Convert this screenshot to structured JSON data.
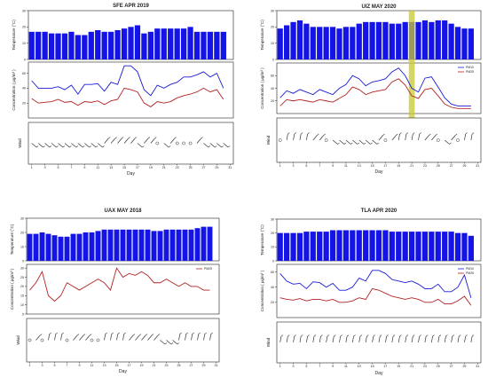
{
  "figure": {
    "panels": [
      {
        "title": "SFE APR 2019",
        "temp": [
          17,
          17,
          17,
          16,
          16,
          16,
          17,
          15,
          15,
          17,
          18,
          17,
          17,
          18,
          19,
          20,
          21,
          16,
          17,
          19,
          19,
          19,
          19,
          19,
          20,
          17,
          17,
          17,
          17,
          17
        ],
        "pm10": [
          50,
          40,
          40,
          40,
          42,
          38,
          44,
          32,
          45,
          45,
          46,
          36,
          48,
          45,
          70,
          70,
          62,
          38,
          30,
          44,
          40,
          45,
          48,
          55,
          55,
          58,
          62,
          55,
          60,
          40
        ],
        "pm25": [
          26,
          20,
          21,
          22,
          25,
          21,
          22,
          17,
          22,
          21,
          23,
          18,
          23,
          25,
          40,
          38,
          35,
          20,
          15,
          22,
          20,
          22,
          27,
          30,
          32,
          35,
          40,
          35,
          38,
          25
        ],
        "wind": [
          2,
          2,
          2,
          2,
          2,
          2,
          2,
          2,
          2,
          2,
          2,
          1,
          1,
          1,
          1,
          1,
          2,
          1,
          1,
          0,
          2,
          1,
          0,
          0,
          0,
          1,
          2,
          2,
          2,
          2
        ],
        "legend": [],
        "highlight": null
      },
      {
        "title": "UIZ MAY 2020",
        "temp": [
          19,
          21,
          23,
          24,
          22,
          20,
          20,
          20,
          20,
          19,
          20,
          20,
          22,
          23,
          23,
          23,
          23,
          22,
          22,
          23,
          23,
          23,
          24,
          23,
          24,
          24,
          22,
          20,
          19,
          19
        ],
        "pm10": [
          25,
          36,
          32,
          38,
          34,
          30,
          38,
          34,
          30,
          40,
          46,
          60,
          55,
          44,
          50,
          52,
          55,
          66,
          72,
          60,
          40,
          34,
          56,
          58,
          42,
          25,
          15,
          12,
          12,
          12
        ],
        "pm25": [
          12,
          22,
          20,
          22,
          20,
          18,
          22,
          20,
          18,
          24,
          30,
          42,
          38,
          30,
          34,
          36,
          38,
          50,
          55,
          45,
          28,
          24,
          38,
          40,
          28,
          15,
          10,
          8,
          8,
          8
        ],
        "wind": [
          0,
          3,
          3,
          3,
          3,
          1,
          1,
          0,
          2,
          2,
          2,
          2,
          2,
          2,
          2,
          1,
          0,
          1,
          3,
          3,
          3,
          3,
          1,
          1,
          0,
          2,
          1,
          0,
          3,
          3
        ],
        "legend": [
          "PM10",
          "PM25"
        ],
        "highlight": 20
      },
      {
        "title": "UAX MAY 2018",
        "temp": [
          19,
          19,
          20,
          19,
          18,
          17,
          17,
          19,
          19,
          20,
          20,
          21,
          22,
          22,
          22,
          22,
          22,
          22,
          22,
          22,
          21,
          21,
          22,
          22,
          22,
          22,
          22,
          23,
          24,
          24
        ],
        "pm10": [],
        "pm25": [
          18,
          22,
          28,
          15,
          12,
          15,
          22,
          20,
          18,
          20,
          22,
          24,
          22,
          18,
          30,
          25,
          27,
          26,
          28,
          26,
          22,
          22,
          24,
          22,
          20,
          22,
          20,
          20,
          18,
          18
        ],
        "wind": [
          0,
          1,
          0,
          3,
          3,
          3,
          0,
          1,
          1,
          1,
          0,
          0,
          3,
          3,
          3,
          3,
          1,
          1,
          1,
          1,
          1,
          2,
          2,
          2,
          3,
          3,
          3,
          3,
          3,
          3
        ],
        "legend": [
          "PM25"
        ],
        "highlight": null
      },
      {
        "title": "TLA APR 2020",
        "temp": [
          20,
          20,
          20,
          20,
          21,
          21,
          21,
          21,
          22,
          22,
          22,
          22,
          22,
          22,
          22,
          22,
          22,
          21,
          21,
          21,
          21,
          21,
          21,
          21,
          21,
          21,
          21,
          20,
          20,
          18
        ],
        "pm10": [
          58,
          48,
          44,
          45,
          38,
          47,
          46,
          40,
          45,
          36,
          36,
          40,
          52,
          48,
          62,
          62,
          58,
          50,
          48,
          46,
          48,
          44,
          38,
          38,
          44,
          34,
          34,
          40,
          56,
          26
        ],
        "pm25": [
          26,
          24,
          23,
          25,
          22,
          24,
          24,
          22,
          24,
          20,
          20,
          22,
          26,
          24,
          38,
          36,
          32,
          28,
          26,
          24,
          26,
          24,
          20,
          20,
          24,
          18,
          18,
          22,
          28,
          16
        ],
        "wind": [
          3,
          3,
          3,
          3,
          3,
          3,
          3,
          3,
          3,
          3,
          3,
          3,
          3,
          3,
          3,
          3,
          3,
          3,
          3,
          3,
          3,
          3,
          3,
          3,
          3,
          3,
          3,
          3,
          3,
          3
        ],
        "legend": [
          "PM10",
          "PM25"
        ],
        "highlight": null
      }
    ],
    "ylabel_temp": "Temperature (°C)",
    "ylabel_conc": "Concentration ( μg/m³ )",
    "ylabel_wind": "Wind",
    "xlabel": "Day",
    "x_ticks": [
      "1",
      "3",
      "5",
      "7",
      "9",
      "11",
      "13",
      "15",
      "17",
      "19",
      "21",
      "23",
      "25",
      "27",
      "29",
      "31"
    ],
    "temp_ticks": [
      "0",
      "10",
      "20",
      "30"
    ],
    "conc_ticks": [
      "20",
      "40",
      "60"
    ],
    "conc_ticks_uax": [
      "5",
      "10",
      "15",
      "20",
      "25",
      "30"
    ],
    "colors": {
      "bar": "#1414e6",
      "pm10": "#1a1ad6",
      "pm25": "#b22222",
      "highlight": "#c8c830",
      "wind": "#333333"
    }
  },
  "chart_data": [
    {
      "type": "bar",
      "title": "SFE APR 2019",
      "xlabel": "Day",
      "ylabel": "Temperature (°C)",
      "ylim": [
        0,
        30
      ],
      "categories": [
        "1",
        "2",
        "3",
        "4",
        "5",
        "6",
        "7",
        "8",
        "9",
        "10",
        "11",
        "12",
        "13",
        "14",
        "15",
        "16",
        "17",
        "18",
        "19",
        "20",
        "21",
        "22",
        "23",
        "24",
        "25",
        "26",
        "27",
        "28",
        "29",
        "30"
      ],
      "values": [
        17,
        17,
        17,
        16,
        16,
        16,
        17,
        15,
        15,
        17,
        18,
        17,
        17,
        18,
        19,
        20,
        21,
        16,
        17,
        19,
        19,
        19,
        19,
        19,
        20,
        17,
        17,
        17,
        17,
        17
      ]
    },
    {
      "type": "line",
      "title": "SFE APR 2019",
      "xlabel": "Day",
      "ylabel": "Concentration ( μg/m³ )",
      "ylim": [
        0,
        75
      ],
      "x": [
        1,
        2,
        3,
        4,
        5,
        6,
        7,
        8,
        9,
        10,
        11,
        12,
        13,
        14,
        15,
        16,
        17,
        18,
        19,
        20,
        21,
        22,
        23,
        24,
        25,
        26,
        27,
        28,
        29,
        30
      ],
      "series": [
        {
          "values": [
            50,
            40,
            40,
            40,
            42,
            38,
            44,
            32,
            45,
            45,
            46,
            36,
            48,
            45,
            70,
            70,
            62,
            38,
            30,
            44,
            40,
            45,
            48,
            55,
            55,
            58,
            62,
            55,
            60,
            40
          ]
        },
        {
          "values": [
            26,
            20,
            21,
            22,
            25,
            21,
            22,
            17,
            22,
            21,
            23,
            18,
            23,
            25,
            40,
            38,
            35,
            20,
            15,
            22,
            20,
            22,
            27,
            30,
            32,
            35,
            40,
            35,
            38,
            25
          ]
        }
      ]
    },
    {
      "type": "bar",
      "title": "UIZ MAY 2020",
      "xlabel": "Day",
      "ylabel": "Temperature (°C)",
      "ylim": [
        0,
        30
      ],
      "categories": [
        "1",
        "2",
        "3",
        "4",
        "5",
        "6",
        "7",
        "8",
        "9",
        "10",
        "11",
        "12",
        "13",
        "14",
        "15",
        "16",
        "17",
        "18",
        "19",
        "20",
        "21",
        "22",
        "23",
        "24",
        "25",
        "26",
        "27",
        "28",
        "29",
        "30"
      ],
      "values": [
        19,
        21,
        23,
        24,
        22,
        20,
        20,
        20,
        20,
        19,
        20,
        20,
        22,
        23,
        23,
        23,
        23,
        22,
        22,
        23,
        23,
        23,
        24,
        23,
        24,
        24,
        22,
        20,
        19,
        19
      ]
    },
    {
      "type": "line",
      "title": "UIZ MAY 2020",
      "xlabel": "Day",
      "ylabel": "Concentration ( μg/m³ )",
      "ylim": [
        0,
        80
      ],
      "x": [
        1,
        2,
        3,
        4,
        5,
        6,
        7,
        8,
        9,
        10,
        11,
        12,
        13,
        14,
        15,
        16,
        17,
        18,
        19,
        20,
        21,
        22,
        23,
        24,
        25,
        26,
        27,
        28,
        29,
        30
      ],
      "series": [
        {
          "name": "PM10",
          "values": [
            25,
            36,
            32,
            38,
            34,
            30,
            38,
            34,
            30,
            40,
            46,
            60,
            55,
            44,
            50,
            52,
            55,
            66,
            72,
            60,
            40,
            34,
            56,
            58,
            42,
            25,
            15,
            12,
            12,
            12
          ]
        },
        {
          "name": "PM25",
          "values": [
            12,
            22,
            20,
            22,
            20,
            18,
            22,
            20,
            18,
            24,
            30,
            42,
            38,
            30,
            34,
            36,
            38,
            50,
            55,
            45,
            28,
            24,
            38,
            40,
            28,
            15,
            10,
            8,
            8,
            8
          ]
        }
      ]
    },
    {
      "type": "bar",
      "title": "UAX MAY 2018",
      "xlabel": "Day",
      "ylabel": "Temperature (°C)",
      "ylim": [
        0,
        30
      ],
      "categories": [
        "1",
        "2",
        "3",
        "4",
        "5",
        "6",
        "7",
        "8",
        "9",
        "10",
        "11",
        "12",
        "13",
        "14",
        "15",
        "16",
        "17",
        "18",
        "19",
        "20",
        "21",
        "22",
        "23",
        "24",
        "25",
        "26",
        "27",
        "28",
        "29",
        "30"
      ],
      "values": [
        19,
        19,
        20,
        19,
        18,
        17,
        17,
        19,
        19,
        20,
        20,
        21,
        22,
        22,
        22,
        22,
        22,
        22,
        22,
        22,
        21,
        21,
        22,
        22,
        22,
        22,
        22,
        23,
        24,
        24
      ]
    },
    {
      "type": "line",
      "title": "UAX MAY 2018",
      "xlabel": "Day",
      "ylabel": "Concentration ( μg/m³ )",
      "ylim": [
        5,
        32
      ],
      "x": [
        1,
        2,
        3,
        4,
        5,
        6,
        7,
        8,
        9,
        10,
        11,
        12,
        13,
        14,
        15,
        16,
        17,
        18,
        19,
        20,
        21,
        22,
        23,
        24,
        25,
        26,
        27,
        28,
        29,
        30
      ],
      "series": [
        {
          "name": "PM25",
          "values": [
            18,
            22,
            28,
            15,
            12,
            15,
            22,
            20,
            18,
            20,
            22,
            24,
            22,
            18,
            30,
            25,
            27,
            26,
            28,
            26,
            22,
            22,
            24,
            22,
            20,
            22,
            20,
            20,
            18,
            18
          ]
        }
      ]
    },
    {
      "type": "bar",
      "title": "TLA APR 2020",
      "xlabel": "Day",
      "ylabel": "Temperature (°C)",
      "ylim": [
        0,
        30
      ],
      "categories": [
        "1",
        "2",
        "3",
        "4",
        "5",
        "6",
        "7",
        "8",
        "9",
        "10",
        "11",
        "12",
        "13",
        "14",
        "15",
        "16",
        "17",
        "18",
        "19",
        "20",
        "21",
        "22",
        "23",
        "24",
        "25",
        "26",
        "27",
        "28",
        "29",
        "30"
      ],
      "values": [
        20,
        20,
        20,
        20,
        21,
        21,
        21,
        21,
        22,
        22,
        22,
        22,
        22,
        22,
        22,
        22,
        22,
        21,
        21,
        21,
        21,
        21,
        21,
        21,
        21,
        21,
        21,
        20,
        20,
        18
      ]
    },
    {
      "type": "line",
      "title": "TLA APR 2020",
      "xlabel": "Day",
      "ylabel": "Concentration ( μg/m³ )",
      "ylim": [
        0,
        70
      ],
      "x": [
        1,
        2,
        3,
        4,
        5,
        6,
        7,
        8,
        9,
        10,
        11,
        12,
        13,
        14,
        15,
        16,
        17,
        18,
        19,
        20,
        21,
        22,
        23,
        24,
        25,
        26,
        27,
        28,
        29,
        30
      ],
      "series": [
        {
          "name": "PM10",
          "values": [
            58,
            48,
            44,
            45,
            38,
            47,
            46,
            40,
            45,
            36,
            36,
            40,
            52,
            48,
            62,
            62,
            58,
            50,
            48,
            46,
            48,
            44,
            38,
            38,
            44,
            34,
            34,
            40,
            56,
            26
          ]
        },
        {
          "name": "PM25",
          "values": [
            26,
            24,
            23,
            25,
            22,
            24,
            24,
            22,
            24,
            20,
            20,
            22,
            26,
            24,
            38,
            36,
            32,
            28,
            26,
            24,
            26,
            24,
            20,
            20,
            24,
            18,
            18,
            22,
            28,
            16
          ]
        }
      ]
    }
  ]
}
